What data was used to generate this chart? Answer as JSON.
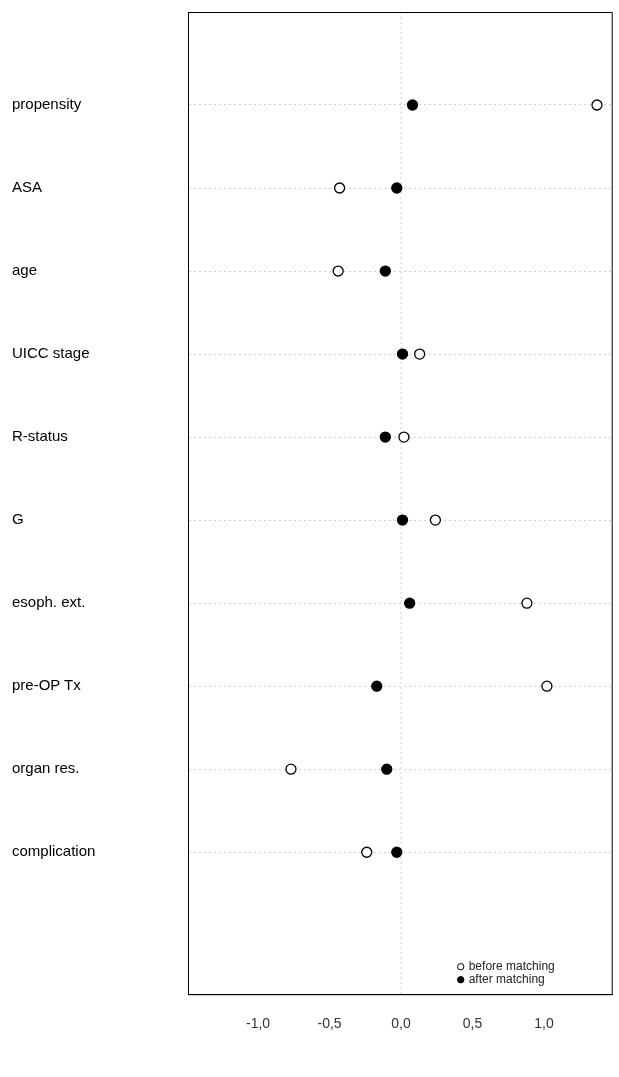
{
  "chart_data": {
    "type": "scatter",
    "categories": [
      "propensity",
      "ASA",
      "age",
      "UICC stage",
      "R-status",
      "G",
      "esoph. ext.",
      "pre-OP Tx",
      "organ res.",
      "complication"
    ],
    "series": [
      {
        "name": "before matching",
        "color": "#000000",
        "values": [
          1.37,
          -0.43,
          -0.44,
          0.13,
          0.02,
          0.24,
          0.88,
          1.02,
          -0.77,
          -0.24
        ]
      },
      {
        "name": "after matching",
        "color": "#000000",
        "values": [
          0.08,
          -0.03,
          -0.11,
          0.01,
          -0.11,
          0.01,
          0.06,
          -0.17,
          -0.1,
          -0.03
        ]
      }
    ],
    "xlim": [
      -1.49,
      1.48
    ],
    "xticks": [
      {
        "value": -1,
        "label": "-1,0"
      },
      {
        "value": -0.5,
        "label": "-0,5"
      },
      {
        "value": 0,
        "label": "0,0"
      },
      {
        "value": 0.5,
        "label": "0,5"
      },
      {
        "value": 1,
        "label": "1,0"
      }
    ],
    "grid": "y",
    "marker": "circle",
    "orientation": "horizontal",
    "legend": "bottom right",
    "ref_lines": [
      {
        "axis": "x",
        "value": 0,
        "line_style": "dotted",
        "color": "#cccccc"
      }
    ]
  }
}
